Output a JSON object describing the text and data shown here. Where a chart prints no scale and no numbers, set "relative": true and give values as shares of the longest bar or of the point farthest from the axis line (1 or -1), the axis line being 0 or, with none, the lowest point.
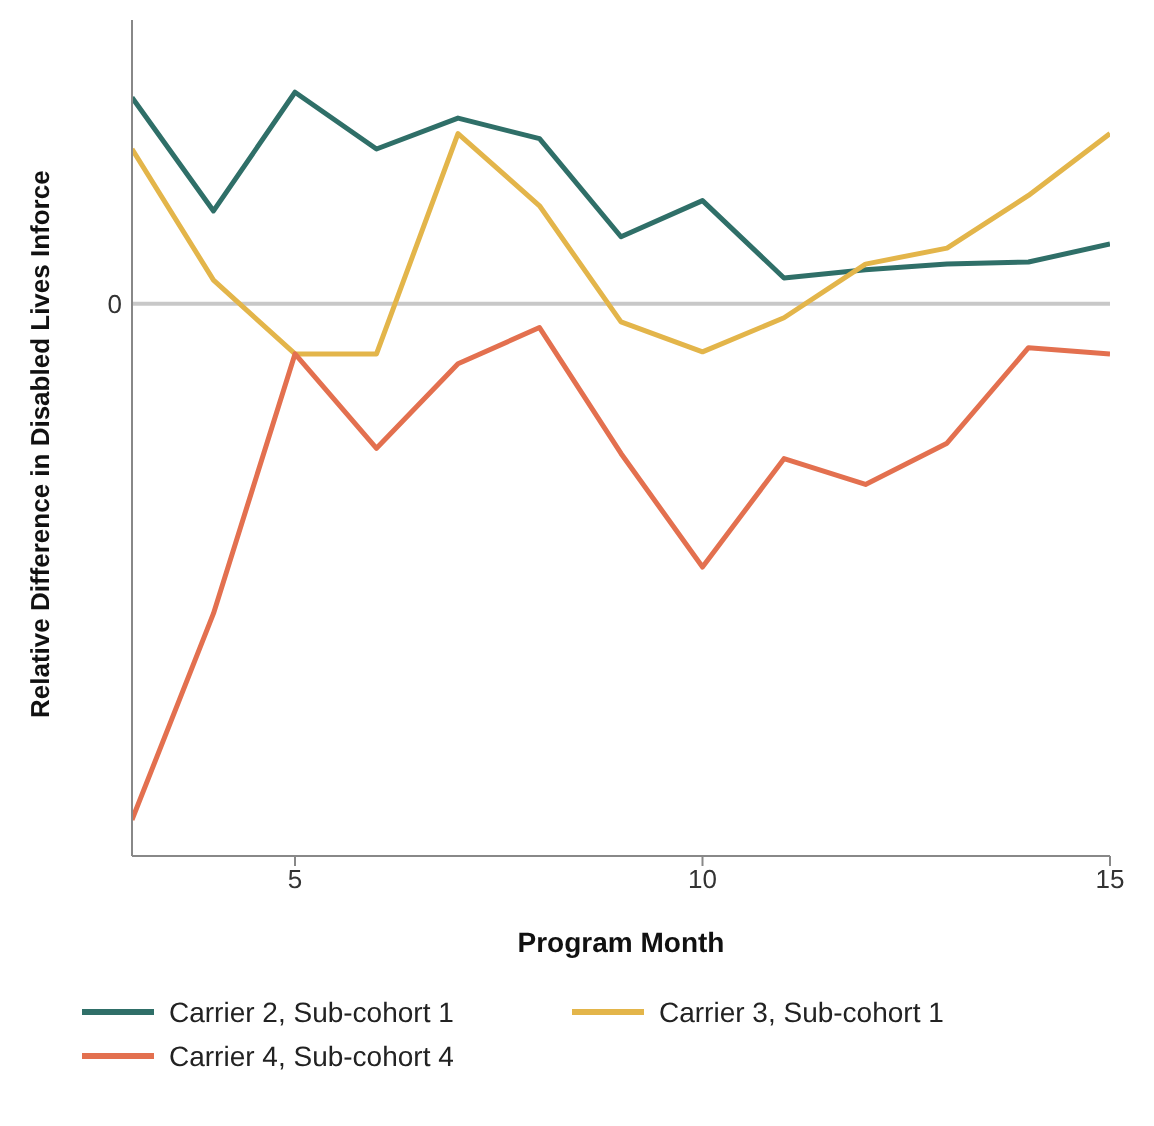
{
  "chart_data": {
    "type": "line",
    "relative": true,
    "xlabel": "Program Month",
    "ylabel": "Relative Difference in Disabled Lives Inforce",
    "x": [
      3,
      4,
      5,
      6,
      7,
      8,
      9,
      10,
      11,
      12,
      13,
      14,
      15
    ],
    "xlim": [
      3,
      15
    ],
    "xticks": [
      5,
      10,
      15
    ],
    "legend": "bottom",
    "grid": false,
    "ref_lines": [
      {
        "axis": "y",
        "value": 0,
        "label": "0",
        "color": "#c8c8c8"
      }
    ],
    "series": [
      {
        "name": "Carrier 2, Sub-cohort 1",
        "color": "#2f6f68",
        "values": [
          0.4,
          0.18,
          0.41,
          0.3,
          0.36,
          0.32,
          0.13,
          0.2,
          0.05,
          0.066,
          0.077,
          0.081,
          0.116
        ]
      },
      {
        "name": "Carrier 3, Sub-cohort 1",
        "color": "#e3b54a",
        "values": [
          0.3,
          0.046,
          -0.097,
          -0.097,
          0.33,
          0.19,
          -0.035,
          -0.093,
          -0.027,
          0.077,
          0.108,
          0.21,
          0.33
        ]
      },
      {
        "name": "Carrier 4, Sub-cohort 4",
        "color": "#e3704f",
        "values": [
          -1,
          -0.6,
          -0.097,
          -0.28,
          -0.116,
          -0.046,
          -0.29,
          -0.51,
          -0.3,
          -0.35,
          -0.27,
          -0.085,
          -0.097
        ]
      }
    ]
  }
}
